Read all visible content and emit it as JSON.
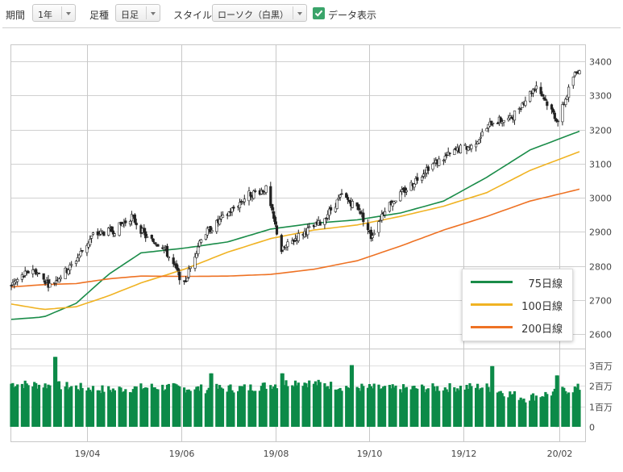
{
  "toolbar": {
    "period": {
      "label": "期間",
      "value": "1年"
    },
    "bar_type": {
      "label": "足種",
      "value": "日足"
    },
    "style": {
      "label": "スタイル",
      "value": "ローソク（白黒）"
    },
    "data_display": {
      "label": "データ表示",
      "checked": true
    }
  },
  "colors": {
    "ma75": "#1a8c49",
    "ma100": "#f0b323",
    "ma200": "#ee7224",
    "volume": "#0c8a48",
    "candle": "#222222"
  },
  "legend": [
    {
      "label": "75日線",
      "color": "#1a8c49"
    },
    {
      "label": "100日線",
      "color": "#f0b323"
    },
    {
      "label": "200日線",
      "color": "#ee7224"
    }
  ],
  "chart_data": {
    "type": "candlestick",
    "x_ticks": [
      "19/04",
      "19/06",
      "19/08",
      "19/10",
      "19/12",
      "20/02"
    ],
    "y_ticks": [
      2600,
      2700,
      2800,
      2900,
      3000,
      3100,
      3200,
      3300,
      3400
    ],
    "ylim": [
      2570,
      3430
    ],
    "volume_ticks": [
      "3百万",
      "2百万",
      "1百万",
      "0"
    ],
    "volume_ylim": [
      0,
      3.5
    ],
    "volume_unit": "百万",
    "grid": true,
    "legend_position": "bottom-right",
    "close_waypoints": [
      [
        "2019-02-11",
        2745
      ],
      [
        "2019-02-25",
        2792
      ],
      [
        "2019-03-08",
        2743
      ],
      [
        "2019-03-22",
        2800
      ],
      [
        "2019-04-05",
        2890
      ],
      [
        "2019-04-19",
        2905
      ],
      [
        "2019-04-30",
        2945
      ],
      [
        "2019-05-10",
        2880
      ],
      [
        "2019-05-20",
        2860
      ],
      [
        "2019-06-03",
        2745
      ],
      [
        "2019-06-14",
        2885
      ],
      [
        "2019-06-28",
        2940
      ],
      [
        "2019-07-15",
        3010
      ],
      [
        "2019-07-26",
        3025
      ],
      [
        "2019-08-05",
        2845
      ],
      [
        "2019-08-16",
        2888
      ],
      [
        "2019-08-30",
        2925
      ],
      [
        "2019-09-13",
        3005
      ],
      [
        "2019-09-24",
        2970
      ],
      [
        "2019-10-02",
        2885
      ],
      [
        "2019-10-11",
        2970
      ],
      [
        "2019-10-25",
        3025
      ],
      [
        "2019-11-08",
        3090
      ],
      [
        "2019-11-29",
        3145
      ],
      [
        "2019-12-06",
        3150
      ],
      [
        "2019-12-20",
        3225
      ],
      [
        "2019-12-31",
        3230
      ],
      [
        "2020-01-17",
        3330
      ],
      [
        "2020-01-31",
        3225
      ],
      [
        "2020-02-10",
        3355
      ],
      [
        "2020-02-14",
        3380
      ]
    ],
    "series": [
      {
        "name": "75日線",
        "points": [
          [
            "2019-02-11",
            2643
          ],
          [
            "2019-03-04",
            2650
          ],
          [
            "2019-03-25",
            2690
          ],
          [
            "2019-04-15",
            2775
          ],
          [
            "2019-05-06",
            2838
          ],
          [
            "2019-06-03",
            2852
          ],
          [
            "2019-07-01",
            2870
          ],
          [
            "2019-07-29",
            2908
          ],
          [
            "2019-08-26",
            2925
          ],
          [
            "2019-09-23",
            2935
          ],
          [
            "2019-10-21",
            2955
          ],
          [
            "2019-11-18",
            2990
          ],
          [
            "2019-12-16",
            3060
          ],
          [
            "2020-01-13",
            3140
          ],
          [
            "2020-02-14",
            3195
          ]
        ]
      },
      {
        "name": "100日線",
        "points": [
          [
            "2019-02-11",
            2688
          ],
          [
            "2019-03-04",
            2672
          ],
          [
            "2019-03-25",
            2680
          ],
          [
            "2019-04-15",
            2712
          ],
          [
            "2019-05-06",
            2750
          ],
          [
            "2019-06-03",
            2790
          ],
          [
            "2019-07-01",
            2840
          ],
          [
            "2019-07-29",
            2880
          ],
          [
            "2019-08-26",
            2905
          ],
          [
            "2019-09-23",
            2920
          ],
          [
            "2019-10-21",
            2945
          ],
          [
            "2019-11-18",
            2975
          ],
          [
            "2019-12-16",
            3015
          ],
          [
            "2020-01-13",
            3080
          ],
          [
            "2020-02-14",
            3135
          ]
        ]
      },
      {
        "name": "200日線",
        "points": [
          [
            "2019-02-11",
            2738
          ],
          [
            "2019-03-04",
            2745
          ],
          [
            "2019-03-25",
            2748
          ],
          [
            "2019-04-15",
            2762
          ],
          [
            "2019-05-06",
            2770
          ],
          [
            "2019-06-03",
            2769
          ],
          [
            "2019-07-01",
            2770
          ],
          [
            "2019-07-29",
            2775
          ],
          [
            "2019-08-26",
            2790
          ],
          [
            "2019-09-23",
            2815
          ],
          [
            "2019-10-21",
            2858
          ],
          [
            "2019-11-18",
            2905
          ],
          [
            "2019-12-16",
            2945
          ],
          [
            "2020-01-13",
            2990
          ],
          [
            "2020-02-14",
            3025
          ]
        ]
      }
    ],
    "volume_waypoints": [
      [
        "2019-02-11",
        2.1
      ],
      [
        "2019-03-15",
        2.0
      ],
      [
        "2019-04-15",
        1.8
      ],
      [
        "2019-05-15",
        1.95
      ],
      [
        "2019-06-15",
        1.85
      ],
      [
        "2019-07-15",
        1.9
      ],
      [
        "2019-08-15",
        2.2
      ],
      [
        "2019-09-15",
        1.95
      ],
      [
        "2019-10-15",
        1.85
      ],
      [
        "2019-11-15",
        1.9
      ],
      [
        "2019-12-15",
        1.95
      ],
      [
        "2020-01-10",
        1.4
      ],
      [
        "2020-02-14",
        1.9
      ]
    ],
    "volume_spikes": [
      [
        "2019-03-11",
        3.4
      ],
      [
        "2019-09-20",
        3.0
      ],
      [
        "2019-12-20",
        2.95
      ],
      [
        "2019-06-21",
        2.6
      ],
      [
        "2019-08-05",
        2.6
      ],
      [
        "2020-01-31",
        2.5
      ]
    ]
  }
}
